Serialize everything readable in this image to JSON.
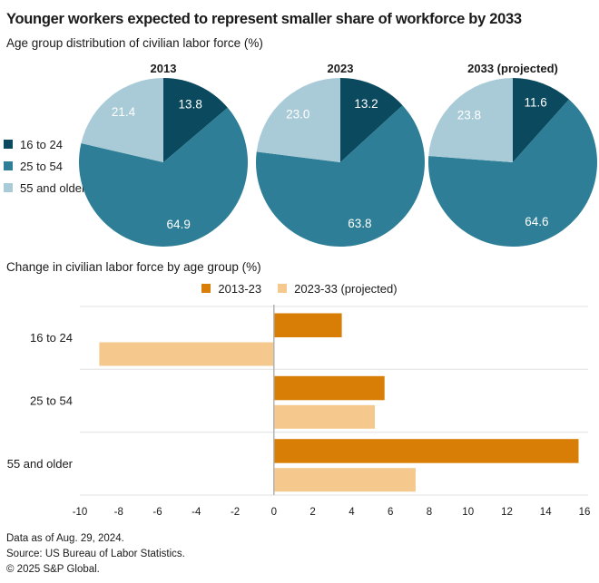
{
  "header": {
    "title": "Younger workers expected to represent smaller share of workforce by 2033"
  },
  "chart_data": [
    {
      "type": "pie",
      "title": "Age group distribution of civilian labor force (%)",
      "categories": [
        "16 to 24",
        "25 to 54",
        "55 and older"
      ],
      "colors": [
        "#0b4a5e",
        "#2d7e96",
        "#a9cbd7"
      ],
      "value_label_color": "#ffffff",
      "start_angle_deg": 0,
      "direction": "clockwise",
      "legend_position": "left",
      "pies": [
        {
          "label": "2013",
          "values": [
            13.8,
            64.9,
            21.4
          ],
          "value_labels": [
            "13.8",
            "64.9",
            "21.4"
          ]
        },
        {
          "label": "2023",
          "values": [
            13.2,
            63.8,
            23.0
          ],
          "value_labels": [
            "13.2",
            "63.8",
            "23.0"
          ]
        },
        {
          "label": "2033 (projected)",
          "values": [
            11.6,
            64.6,
            23.8
          ],
          "value_labels": [
            "11.6",
            "64.6",
            "23.8"
          ]
        }
      ]
    },
    {
      "type": "bar",
      "orientation": "horizontal",
      "title": "Change in civilian labor force by age group (%)",
      "categories": [
        "16 to 24",
        "25 to 54",
        "55 and older"
      ],
      "series": [
        {
          "name": "2013-23",
          "color": "#d87d05",
          "values": [
            3.5,
            5.7,
            15.7
          ]
        },
        {
          "name": "2023-33 (projected)",
          "color": "#f5c88d",
          "values": [
            -9.0,
            5.2,
            7.3
          ]
        }
      ],
      "xlim": [
        -10,
        16
      ],
      "xticks": [
        -10,
        -8,
        -6,
        -4,
        -2,
        0,
        2,
        4,
        6,
        8,
        10,
        12,
        14,
        16
      ],
      "grid": "row-dividers",
      "legend_position": "top-center",
      "grid_color": "#e0e0e0",
      "zero_line_color": "#b3b3b3"
    }
  ],
  "footer": {
    "lines": [
      "Data as of Aug. 29, 2024.",
      "Source: US Bureau of Labor Statistics.",
      "© 2025 S&P Global."
    ]
  }
}
